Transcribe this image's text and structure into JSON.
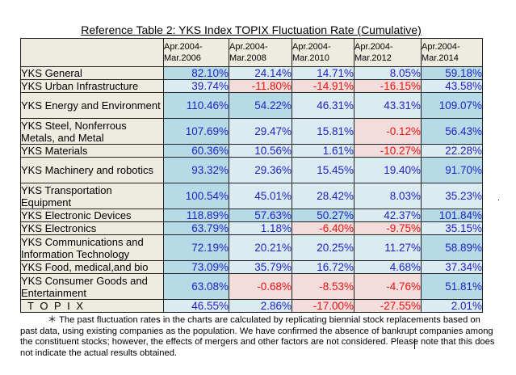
{
  "title": "Reference Table 2: YKS Index TOPIX Fluctuation Rate (Cumulative)",
  "columns": [
    {
      "line1": "Apr.2004-",
      "line2": "Mar.2006"
    },
    {
      "line1": "Apr.2004-",
      "line2": "Mar.2008"
    },
    {
      "line1": "Apr.2004-",
      "line2": "Mar.2010"
    },
    {
      "line1": "Apr.2004-",
      "line2": "Mar.2012"
    },
    {
      "line1": "Apr.2004-",
      "line2": "Mar.2014"
    }
  ],
  "rows": [
    {
      "label": "YKS General",
      "values": [
        "82.10%",
        "24.14%",
        "14.71%",
        "8.05%",
        "59.18%"
      ]
    },
    {
      "label": "YKS Urban Infrastructure",
      "values": [
        "39.74%",
        "-11.80%",
        "-14.91%",
        "-16.15%",
        "43.58%"
      ]
    },
    {
      "label": "YKS Energy and Environment",
      "values": [
        "110.46%",
        "54.22%",
        "46.31%",
        "43.31%",
        "109.07%"
      ]
    },
    {
      "label": "YKS Steel, Nonferrous Metals, and Metal",
      "values": [
        "107.69%",
        "29.47%",
        "15.81%",
        "-0.12%",
        "56.43%"
      ]
    },
    {
      "label": "YKS Materials",
      "values": [
        "60.36%",
        "10.56%",
        "1.61%",
        "-10.27%",
        "22.28%"
      ]
    },
    {
      "label": "YKS Machinery and robotics",
      "values": [
        "93.32%",
        "29.36%",
        "15.45%",
        "19.40%",
        "91.70%"
      ]
    },
    {
      "label": "YKS Transportation Equipment",
      "values": [
        "100.54%",
        "45.01%",
        "28.42%",
        "8.03%",
        "35.23%"
      ]
    },
    {
      "label": "YKS Electronic Devices",
      "values": [
        "118.89%",
        "57.63%",
        "50.27%",
        "42.37%",
        "101.84%"
      ]
    },
    {
      "label": "YKS Electronics",
      "values": [
        "63.79%",
        "1.18%",
        "-6.40%",
        "-9.75%",
        "35.15%"
      ]
    },
    {
      "label": "YKS Communications and Information Technology",
      "values": [
        "72.19%",
        "20.21%",
        "20.25%",
        "11.27%",
        "58.89%"
      ]
    },
    {
      "label": "YKS Food, medical,and bio",
      "values": [
        "73.09%",
        "35.79%",
        "16.72%",
        "4.68%",
        "37.34%"
      ]
    },
    {
      "label": "YKS Consumer Goods and Entertainment",
      "values": [
        "63.08%",
        "-0.68%",
        "-8.53%",
        "-4.76%",
        "51.81%"
      ]
    },
    {
      "label": "TOPIX",
      "values": [
        "46.55%",
        "2.86%",
        "-17.00%",
        "-27.55%",
        "2.01%"
      ]
    }
  ],
  "note": "＊ The past fluctuation rates in the charts are calculated by replicating biennial stock replacements based on past data, using existing companies as the population. We have confirmed the absence of bankrupt companies among the constituent stocks; however, the effects of mergers and other factors are not considered. Please note that this does not indicate the actual results obtained.",
  "colors": {
    "header_bg": "#eeebe1",
    "positive_text": "#1f1fc8",
    "negative_text": "#f01010",
    "negative_bg": "#f3dcdc",
    "high_bg": "#b7dbe6",
    "low_bg": "#daecf2"
  }
}
